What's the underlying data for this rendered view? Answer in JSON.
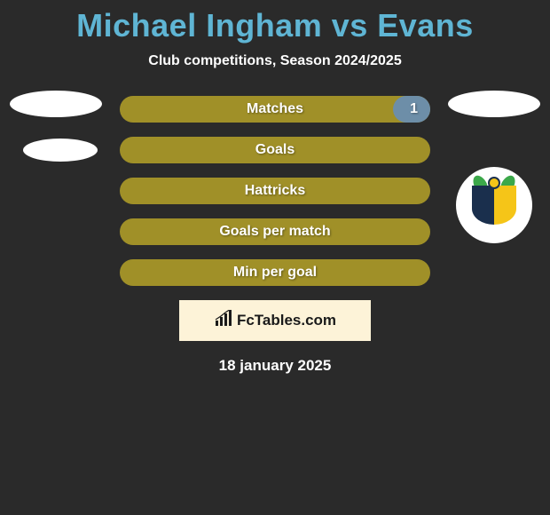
{
  "title": "Michael Ingham vs Evans",
  "subtitle": "Club competitions, Season 2024/2025",
  "colors": {
    "background": "#2a2a2a",
    "title": "#5fb5d4",
    "text": "#ffffff",
    "bar_primary": "#a09028",
    "bar_secondary": "#6d8ea8",
    "logo_bg": "#fdf3d8",
    "logo_text": "#1a1a1a"
  },
  "bars": [
    {
      "label": "Matches",
      "right_value": "1",
      "right_fill_pct": 12,
      "show_right_fill": true
    },
    {
      "label": "Goals",
      "right_value": "",
      "right_fill_pct": 0,
      "show_right_fill": false
    },
    {
      "label": "Hattricks",
      "right_value": "",
      "right_fill_pct": 0,
      "show_right_fill": false
    },
    {
      "label": "Goals per match",
      "right_value": "",
      "right_fill_pct": 0,
      "show_right_fill": false
    },
    {
      "label": "Min per goal",
      "right_value": "",
      "right_fill_pct": 0,
      "show_right_fill": false
    }
  ],
  "logo": {
    "text": "FcTables.com"
  },
  "date": "18 january 2025",
  "left_player": {
    "badges": 2
  },
  "right_player": {
    "badges": 1,
    "has_crest": true
  }
}
